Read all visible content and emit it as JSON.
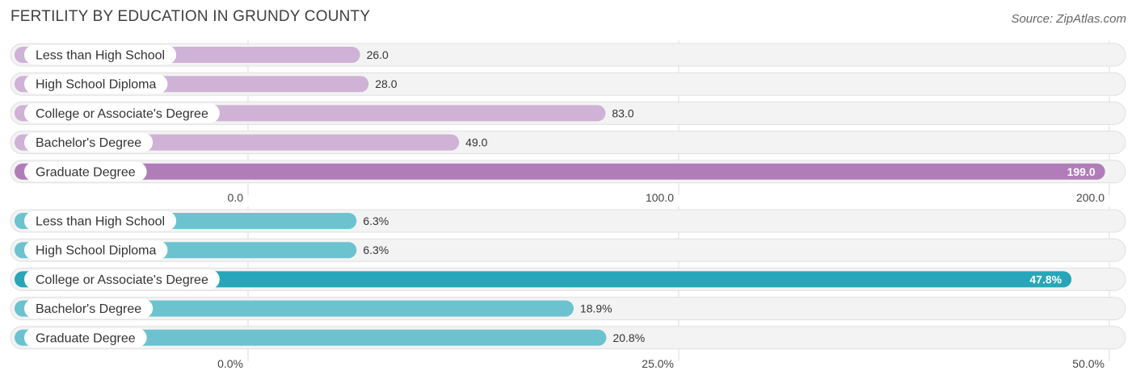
{
  "title": "FERTILITY BY EDUCATION IN GRUNDY COUNTY",
  "source": "Source: ZipAtlas.com",
  "chart_data": [
    {
      "type": "bar",
      "orientation": "horizontal",
      "categories": [
        "Less than High School",
        "High School Diploma",
        "College or Associate's Degree",
        "Bachelor's Degree",
        "Graduate Degree"
      ],
      "values": [
        26.0,
        28.0,
        83.0,
        49.0,
        199.0
      ],
      "value_labels": [
        "26.0",
        "28.0",
        "83.0",
        "49.0",
        "199.0"
      ],
      "xlim": [
        0,
        200
      ],
      "ticks": [
        0,
        100,
        200
      ],
      "tick_labels": [
        "0.0",
        "100.0",
        "200.0"
      ],
      "grid": true,
      "colors": {
        "bar": "#cfb2d6",
        "highlight": "#b07db9"
      },
      "highlight_index": 4
    },
    {
      "type": "bar",
      "orientation": "horizontal",
      "categories": [
        "Less than High School",
        "High School Diploma",
        "College or Associate's Degree",
        "Bachelor's Degree",
        "Graduate Degree"
      ],
      "values": [
        6.3,
        6.3,
        47.8,
        18.9,
        20.8
      ],
      "value_labels": [
        "6.3%",
        "6.3%",
        "47.8%",
        "18.9%",
        "20.8%"
      ],
      "xlim": [
        0,
        50
      ],
      "ticks": [
        0,
        25,
        50
      ],
      "tick_labels": [
        "0.0%",
        "25.0%",
        "50.0%"
      ],
      "grid": true,
      "colors": {
        "bar": "#6cc3cf",
        "highlight": "#27a5b9"
      },
      "highlight_index": 2
    }
  ]
}
